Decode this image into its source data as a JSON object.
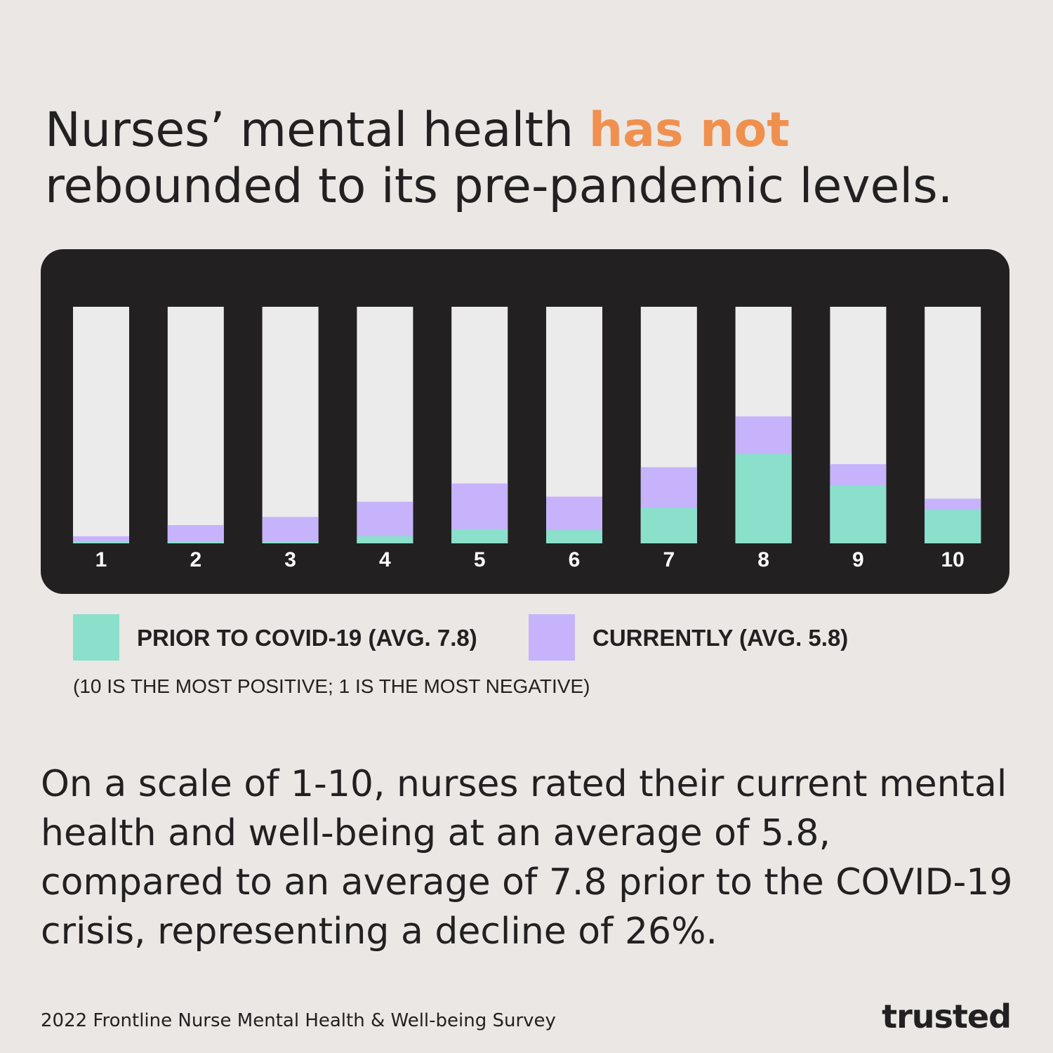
{
  "headline": {
    "part1": "Nurses’ mental health ",
    "highlight": "has not",
    "part2": " rebounded to its pre-pandemic levels."
  },
  "colors": {
    "background": "#ebe7e4",
    "panel": "#222021",
    "track": "#ebebeb",
    "prior": "#8ae0cb",
    "current": "#c6b3fb",
    "highlight": "#f0904f"
  },
  "chart_data": {
    "type": "bar",
    "stacked": "overlay",
    "categories": [
      "1",
      "2",
      "3",
      "4",
      "5",
      "6",
      "7",
      "8",
      "9",
      "10"
    ],
    "series": [
      {
        "name": "PRIOR TO COVID-19 (AVG. 7.8)",
        "color": "#8ae0cb",
        "values": [
          0.2,
          0.2,
          0.2,
          0.7,
          1.4,
          1.3,
          3.5,
          8.8,
          5.7,
          3.3
        ]
      },
      {
        "name": "CURRENTLY (AVG. 5.8)",
        "color": "#c6b3fb",
        "values": [
          0.7,
          1.8,
          2.6,
          4.1,
          5.9,
          4.6,
          7.5,
          12.5,
          7.8,
          4.4
        ]
      }
    ],
    "ylim": [
      0,
      23.3
    ],
    "grid": false,
    "legend_position": "bottom-left"
  },
  "legend": {
    "prior_label": "PRIOR TO COVID-19 (AVG. 7.8)",
    "current_label": "CURRENTLY (AVG. 5.8)"
  },
  "scale_note": "(10 IS THE MOST POSITIVE; 1 IS THE MOST NEGATIVE)",
  "body_text": "On a scale of 1-10, nurses rated their current mental health and well-being at an average of 5.8, compared to an average of 7.8 prior to the COVID-19 crisis, representing a decline of 26%.",
  "source": "2022 Frontline Nurse Mental Health & Well-being Survey",
  "logo_text": "trusted"
}
